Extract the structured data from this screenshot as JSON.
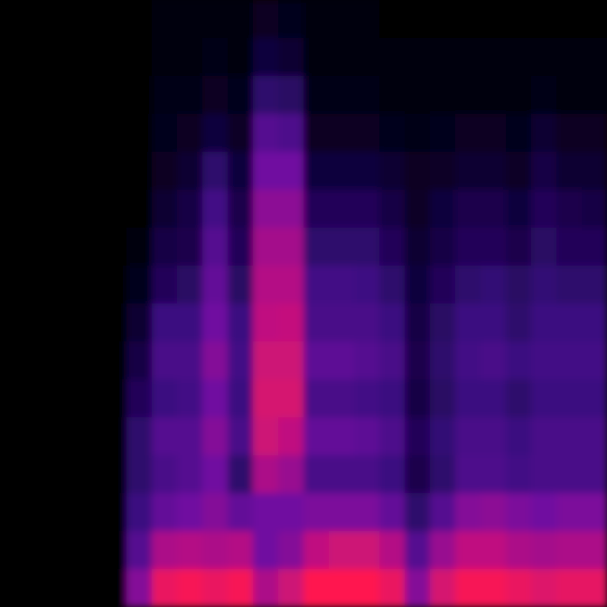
{
  "chart_data": {
    "type": "heatmap",
    "tick_labels": false,
    "value_range": [
      0,
      100
    ],
    "cells": [
      [
        0,
        0,
        0,
        0,
        0,
        0,
        0,
        0,
        0,
        0,
        0,
        0,
        0,
        0,
        0,
        0
      ],
      [
        0,
        0,
        0,
        0,
        0,
        0,
        0,
        0,
        0,
        0,
        0,
        0,
        0,
        0,
        0,
        0
      ],
      [
        0,
        0,
        0,
        0,
        0,
        0,
        0,
        0,
        0,
        0,
        0,
        0,
        0,
        0,
        0,
        0
      ],
      [
        0,
        0,
        0,
        0,
        0,
        0,
        0,
        0,
        0,
        0,
        0,
        0,
        0,
        0,
        0,
        0
      ],
      [
        0,
        0,
        0,
        0,
        0,
        0,
        0,
        0,
        0,
        0,
        0,
        0,
        0,
        0,
        0,
        0
      ],
      [
        2,
        2,
        2,
        2,
        2,
        2,
        5,
        8,
        15,
        20,
        25,
        30,
        30,
        35,
        45,
        60
      ],
      [
        3,
        4,
        6,
        8,
        10,
        15,
        20,
        25,
        35,
        40,
        35,
        45,
        40,
        50,
        70,
        85
      ],
      [
        3,
        4,
        6,
        10,
        15,
        20,
        22,
        28,
        35,
        40,
        38,
        45,
        45,
        55,
        72,
        88
      ],
      [
        4,
        6,
        10,
        18,
        30,
        38,
        45,
        50,
        55,
        60,
        55,
        60,
        55,
        60,
        70,
        85
      ],
      [
        4,
        5,
        8,
        12,
        18,
        22,
        25,
        28,
        35,
        38,
        35,
        40,
        30,
        50,
        72,
        88
      ],
      [
        10,
        18,
        30,
        45,
        55,
        62,
        68,
        72,
        75,
        78,
        80,
        78,
        70,
        55,
        55,
        70
      ],
      [
        8,
        15,
        28,
        42,
        55,
        62,
        68,
        72,
        76,
        78,
        80,
        75,
        65,
        55,
        60,
        78
      ],
      [
        3,
        4,
        6,
        10,
        18,
        25,
        30,
        38,
        40,
        48,
        40,
        50,
        40,
        58,
        75,
        90
      ],
      [
        3,
        4,
        6,
        10,
        18,
        25,
        30,
        38,
        40,
        48,
        40,
        50,
        40,
        58,
        78,
        90
      ],
      [
        3,
        4,
        6,
        10,
        18,
        25,
        30,
        36,
        40,
        45,
        38,
        48,
        40,
        58,
        78,
        90
      ],
      [
        2,
        3,
        5,
        8,
        15,
        20,
        25,
        30,
        35,
        40,
        35,
        42,
        35,
        50,
        72,
        85
      ],
      [
        2,
        3,
        4,
        6,
        10,
        12,
        15,
        18,
        20,
        22,
        20,
        25,
        22,
        30,
        45,
        60
      ],
      [
        2,
        3,
        4,
        8,
        12,
        18,
        20,
        25,
        28,
        30,
        28,
        32,
        30,
        45,
        65,
        80
      ],
      [
        2,
        3,
        5,
        10,
        15,
        22,
        25,
        30,
        35,
        38,
        35,
        40,
        42,
        60,
        75,
        88
      ],
      [
        2,
        3,
        5,
        10,
        15,
        22,
        25,
        32,
        35,
        40,
        35,
        40,
        42,
        62,
        75,
        88
      ],
      [
        2,
        3,
        4,
        8,
        12,
        18,
        22,
        28,
        30,
        35,
        30,
        35,
        38,
        58,
        70,
        85
      ],
      [
        2,
        3,
        6,
        15,
        20,
        25,
        28,
        32,
        35,
        38,
        35,
        40,
        40,
        55,
        68,
        82
      ],
      [
        2,
        3,
        5,
        10,
        15,
        22,
        25,
        30,
        35,
        38,
        35,
        40,
        40,
        58,
        70,
        84
      ],
      [
        2,
        3,
        5,
        10,
        15,
        20,
        25,
        30,
        35,
        38,
        35,
        40,
        40,
        58,
        70,
        84
      ]
    ]
  }
}
